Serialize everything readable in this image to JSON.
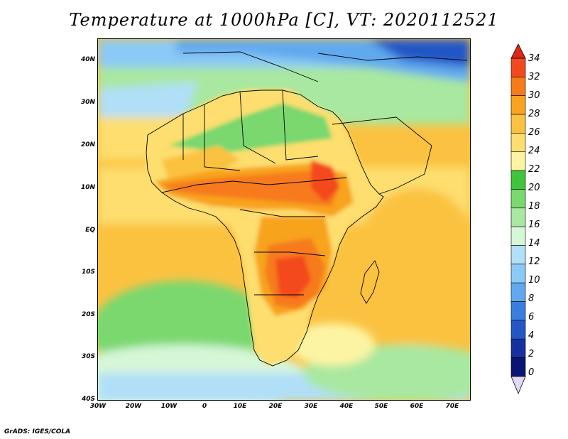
{
  "title": "Temperature at 1000hPa [C], VT: 2020112521",
  "footer": "GrADS: IGES/COLA",
  "map": {
    "lon_range": [
      -30,
      75
    ],
    "lat_range": [
      -40,
      45
    ],
    "x_ticks": [
      "30W",
      "20W",
      "10W",
      "0",
      "10E",
      "20E",
      "30E",
      "40E",
      "50E",
      "60E",
      "70E"
    ],
    "y_ticks": [
      "40N",
      "30N",
      "20N",
      "10N",
      "EQ",
      "10S",
      "20S",
      "30S",
      "40S"
    ]
  },
  "colorbar": {
    "levels": [
      "34",
      "32",
      "30",
      "28",
      "26",
      "24",
      "22",
      "20",
      "18",
      "16",
      "14",
      "12",
      "10",
      "8",
      "6",
      "4",
      "2",
      "0"
    ],
    "colors": [
      "#f3491f",
      "#f77a1b",
      "#f8a31f",
      "#fbc241",
      "#fdde6e",
      "#fdf4a3",
      "#40c43c",
      "#7ad86e",
      "#a8e8a0",
      "#d6f6d8",
      "#b0dff7",
      "#8bc9f6",
      "#60a9ee",
      "#3a7fdf",
      "#2456c7",
      "#16319f",
      "#0a1474"
    ],
    "top_color": "#e0261b",
    "bottom_color": "#e3d8f7"
  }
}
